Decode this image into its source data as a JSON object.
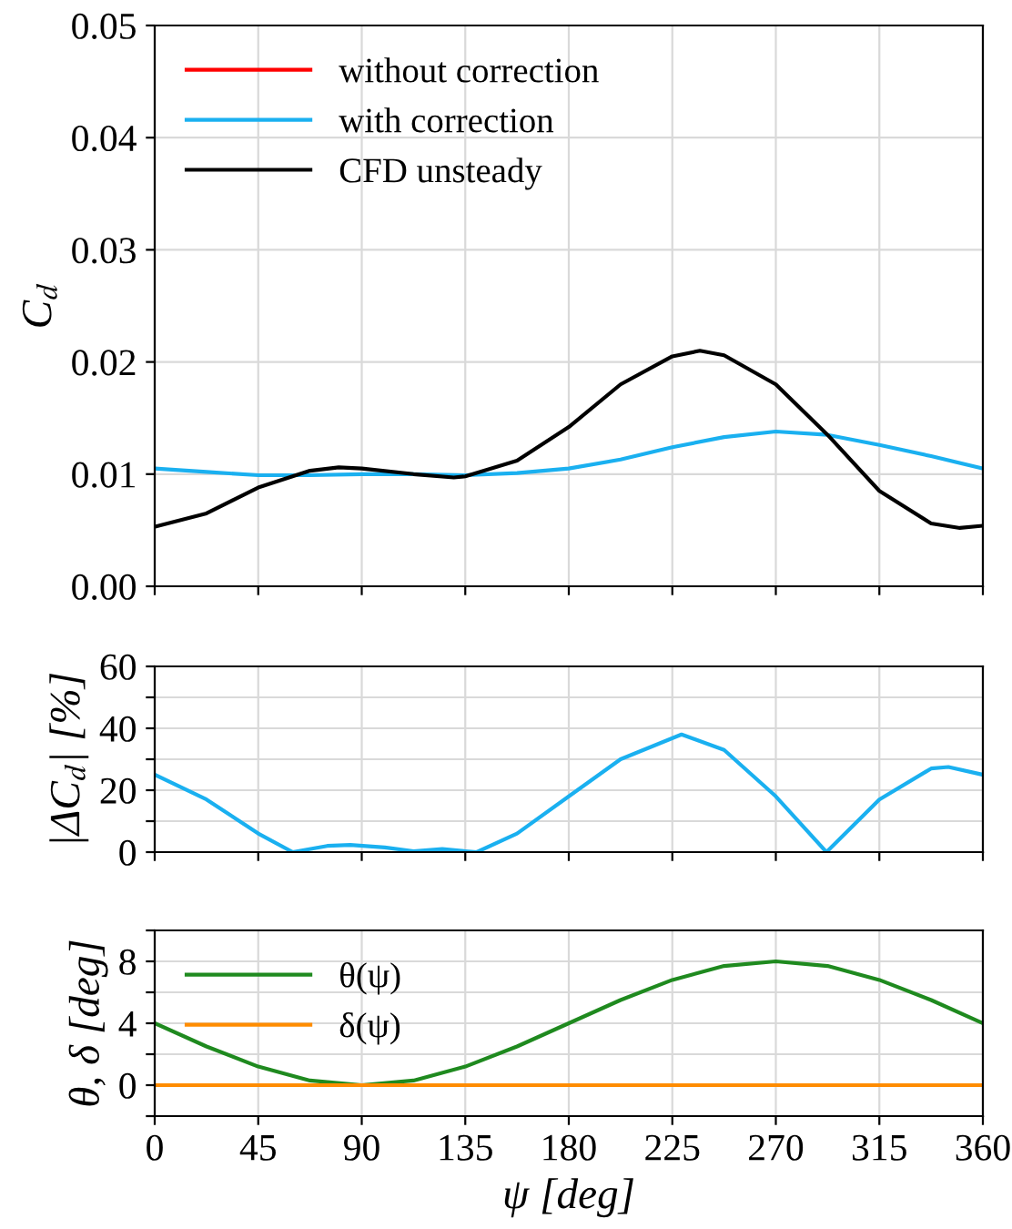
{
  "chart_data": [
    {
      "type": "line",
      "ylabel": "C$_{d}$",
      "xlim": [
        0,
        360
      ],
      "xticks": [
        0,
        45,
        90,
        135,
        180,
        225,
        270,
        315,
        360
      ],
      "ylim": [
        0,
        0.05
      ],
      "yticks": [
        {
          "value": 0,
          "label": "0.00"
        },
        {
          "value": 0.01,
          "label": "0.01"
        },
        {
          "value": 0.02,
          "label": "0.02"
        },
        {
          "value": 0.03,
          "label": "0.03"
        },
        {
          "value": 0.04,
          "label": "0.04"
        },
        {
          "value": 0.05,
          "label": "0.05"
        }
      ],
      "grid": true,
      "legend": "top left",
      "tick_labels": "y",
      "series": [
        {
          "name": "without correction",
          "color": "#ff0000"
        },
        {
          "name": "with correction",
          "color": "#1ab0f0",
          "x": [
            0,
            22.5,
            45,
            67.5,
            90,
            112.5,
            135,
            157.5,
            180,
            202.5,
            225,
            247.5,
            270,
            292.5,
            315,
            337.5,
            360
          ],
          "values": [
            0.0105,
            0.0102,
            0.0099,
            0.0099,
            0.01,
            0.01,
            0.0099,
            0.0101,
            0.0105,
            0.0113,
            0.0124,
            0.0133,
            0.0138,
            0.0135,
            0.0126,
            0.0116,
            0.0105
          ]
        },
        {
          "name": "CFD unsteady",
          "color": "#000000",
          "x": [
            0,
            22.5,
            45,
            67.5,
            80,
            90,
            112.5,
            130,
            135,
            157.5,
            180,
            202.5,
            225,
            237,
            247.5,
            270,
            292.5,
            315,
            337.5,
            350,
            360
          ],
          "values": [
            0.0053,
            0.0065,
            0.0088,
            0.0103,
            0.0106,
            0.0105,
            0.01,
            0.0097,
            0.0098,
            0.0112,
            0.0142,
            0.018,
            0.0205,
            0.021,
            0.0206,
            0.018,
            0.0135,
            0.0085,
            0.0056,
            0.0052,
            0.0054
          ]
        }
      ]
    },
    {
      "type": "line",
      "ylabel": "|ΔC$_{d}$| [%]",
      "xlim": [
        0,
        360
      ],
      "xticks": [
        0,
        45,
        90,
        135,
        180,
        225,
        270,
        315,
        360
      ],
      "ylim": [
        0,
        60
      ],
      "yticks": [
        0,
        {
          "value": 10,
          "label": null
        },
        20,
        {
          "value": 30,
          "label": null
        },
        40,
        {
          "value": 50,
          "label": null
        },
        60
      ],
      "grid": true,
      "tick_labels": "y",
      "series": [
        {
          "color": "#1ab0f0",
          "x": [
            0,
            22.5,
            45,
            60,
            75,
            85,
            100,
            112.5,
            125,
            135,
            140,
            157.5,
            180,
            202.5,
            229,
            247.5,
            270,
            292,
            315,
            337.5,
            345,
            360
          ],
          "values": [
            25,
            17,
            6,
            0,
            2,
            2.3,
            1.5,
            0.3,
            1,
            0.3,
            0,
            6,
            18,
            30,
            38,
            33,
            18,
            0,
            17,
            27,
            27.5,
            25
          ]
        }
      ]
    },
    {
      "type": "line",
      "xlabel": "ψ [deg]",
      "ylabel": "θ, δ [deg]",
      "xlim": [
        0,
        360
      ],
      "xticks": [
        0,
        45,
        90,
        135,
        180,
        225,
        270,
        315,
        360
      ],
      "ylim": [
        -2,
        10
      ],
      "yticks": [
        {
          "value": -2,
          "label": null
        },
        0,
        {
          "value": 2,
          "label": null
        },
        4,
        {
          "value": 6,
          "label": null
        },
        8,
        {
          "value": 10,
          "label": null
        }
      ],
      "grid": true,
      "legend": "top left",
      "series": [
        {
          "name": "θ(ψ)",
          "color": "#1f8a1f",
          "x": [
            0,
            22.5,
            45,
            67.5,
            90,
            112.5,
            135,
            157.5,
            180,
            202.5,
            225,
            247.5,
            270,
            292.5,
            315,
            337.5,
            360
          ],
          "values": [
            4,
            2.5,
            1.2,
            0.3,
            0,
            0.3,
            1.2,
            2.5,
            4,
            5.5,
            6.8,
            7.7,
            8,
            7.7,
            6.8,
            5.5,
            4
          ]
        },
        {
          "name": "δ(ψ)",
          "color": "#ff8c00",
          "x": [
            0,
            360
          ],
          "values": [
            0,
            0
          ]
        }
      ]
    }
  ]
}
